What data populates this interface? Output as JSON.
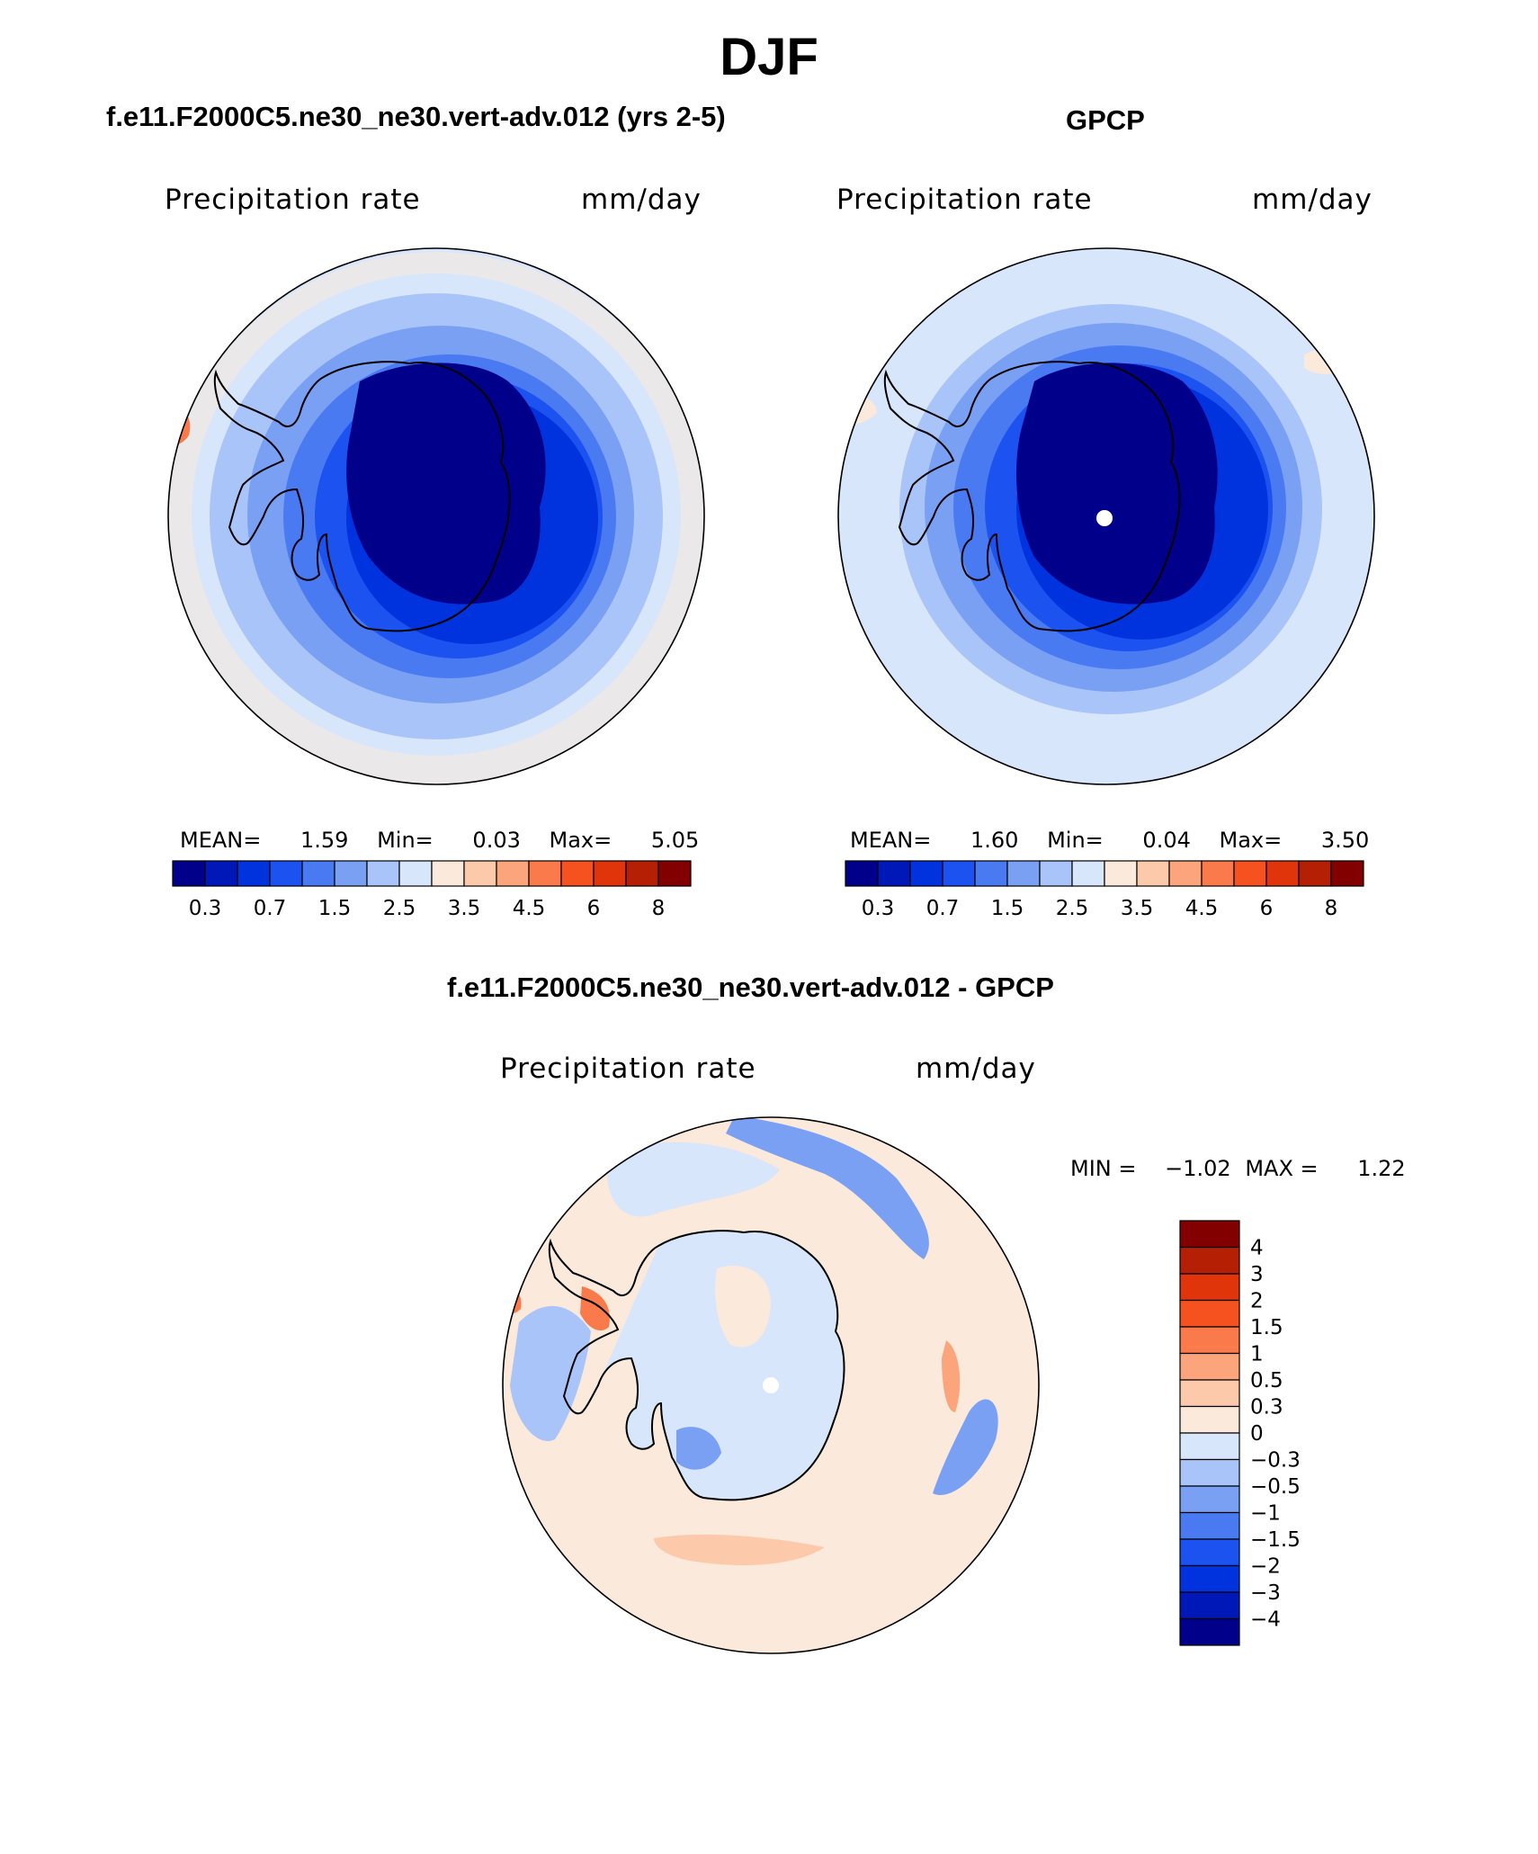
{
  "title": "DJF",
  "panels": [
    {
      "title": "f.e11.F2000C5.ne30_ne30.vert-adv.012 (yrs 2-5)",
      "variable": "Precipitation rate",
      "units": "mm/day",
      "stats": {
        "mean_label": "MEAN=",
        "mean": "1.59",
        "min_label": "Min=",
        "min": "0.03",
        "max_label": "Max=",
        "max": "5.05"
      }
    },
    {
      "title": "GPCP",
      "variable": "Precipitation rate",
      "units": "mm/day",
      "stats": {
        "mean_label": "MEAN=",
        "mean": "1.60",
        "min_label": "Min=",
        "min": "0.04",
        "max_label": "Max=",
        "max": "3.50"
      }
    },
    {
      "title": "f.e11.F2000C5.ne30_ne30.vert-adv.012 - GPCP",
      "variable": "Precipitation rate",
      "units": "mm/day",
      "stats": {
        "min_label": "MIN =",
        "min": "−1.02",
        "max_label": "MAX =",
        "max": "1.22"
      }
    }
  ],
  "colorbar_abs": {
    "labels": [
      "0.3",
      "0.7",
      "1.5",
      "2.5",
      "3.5",
      "4.5",
      "6",
      "8"
    ],
    "colors": [
      "#00008b",
      "#0018b8",
      "#0033dd",
      "#1b52f0",
      "#4a7af2",
      "#7aa0f4",
      "#a9c4f8",
      "#d8e6fb",
      "#fbe9db",
      "#fcc9aa",
      "#fca47c",
      "#fb7a4b",
      "#f5521f",
      "#e0340a",
      "#b52005",
      "#820000"
    ]
  },
  "colorbar_diff": {
    "labels": [
      "4",
      "3",
      "2",
      "1.5",
      "1",
      "0.5",
      "0.3",
      "0",
      "−0.3",
      "−0.5",
      "−1",
      "−1.5",
      "−2",
      "−3",
      "−4"
    ],
    "colors": [
      "#820000",
      "#b52005",
      "#e0340a",
      "#f5521f",
      "#fb7a4b",
      "#fca47c",
      "#fcc9aa",
      "#fbe9db",
      "#d8e6fb",
      "#a9c4f8",
      "#7aa0f4",
      "#4a7af2",
      "#1b52f0",
      "#0033dd",
      "#0018b8",
      "#00008b"
    ]
  }
}
